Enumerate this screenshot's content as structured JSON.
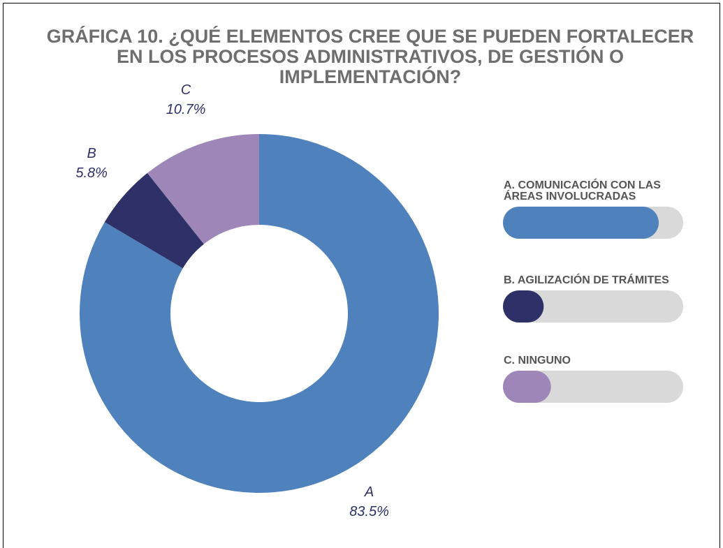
{
  "chart_data": {
    "type": "donut",
    "title": "GRÁFICA 10. ¿QUÉ ELEMENTOS CREE QUE SE PUEDEN FORTALECER EN LOS PROCESOS ADMINISTRATIVOS, DE GESTIÓN O IMPLEMENTACIÓN?",
    "categories": [
      "A",
      "B",
      "C"
    ],
    "values": [
      83.5,
      5.8,
      10.7
    ],
    "value_labels": [
      "83.5%",
      "5.8%",
      "10.7%"
    ],
    "legend": [
      "A. COMUNICACIÓN CON LAS ÁREAS INVOLUCRADAS",
      "B. AGILIZACIÓN DE TRÁMITES",
      "C. NINGUNO"
    ],
    "colors": [
      "#4f81bd",
      "#2e3168",
      "#9e86b8"
    ]
  }
}
